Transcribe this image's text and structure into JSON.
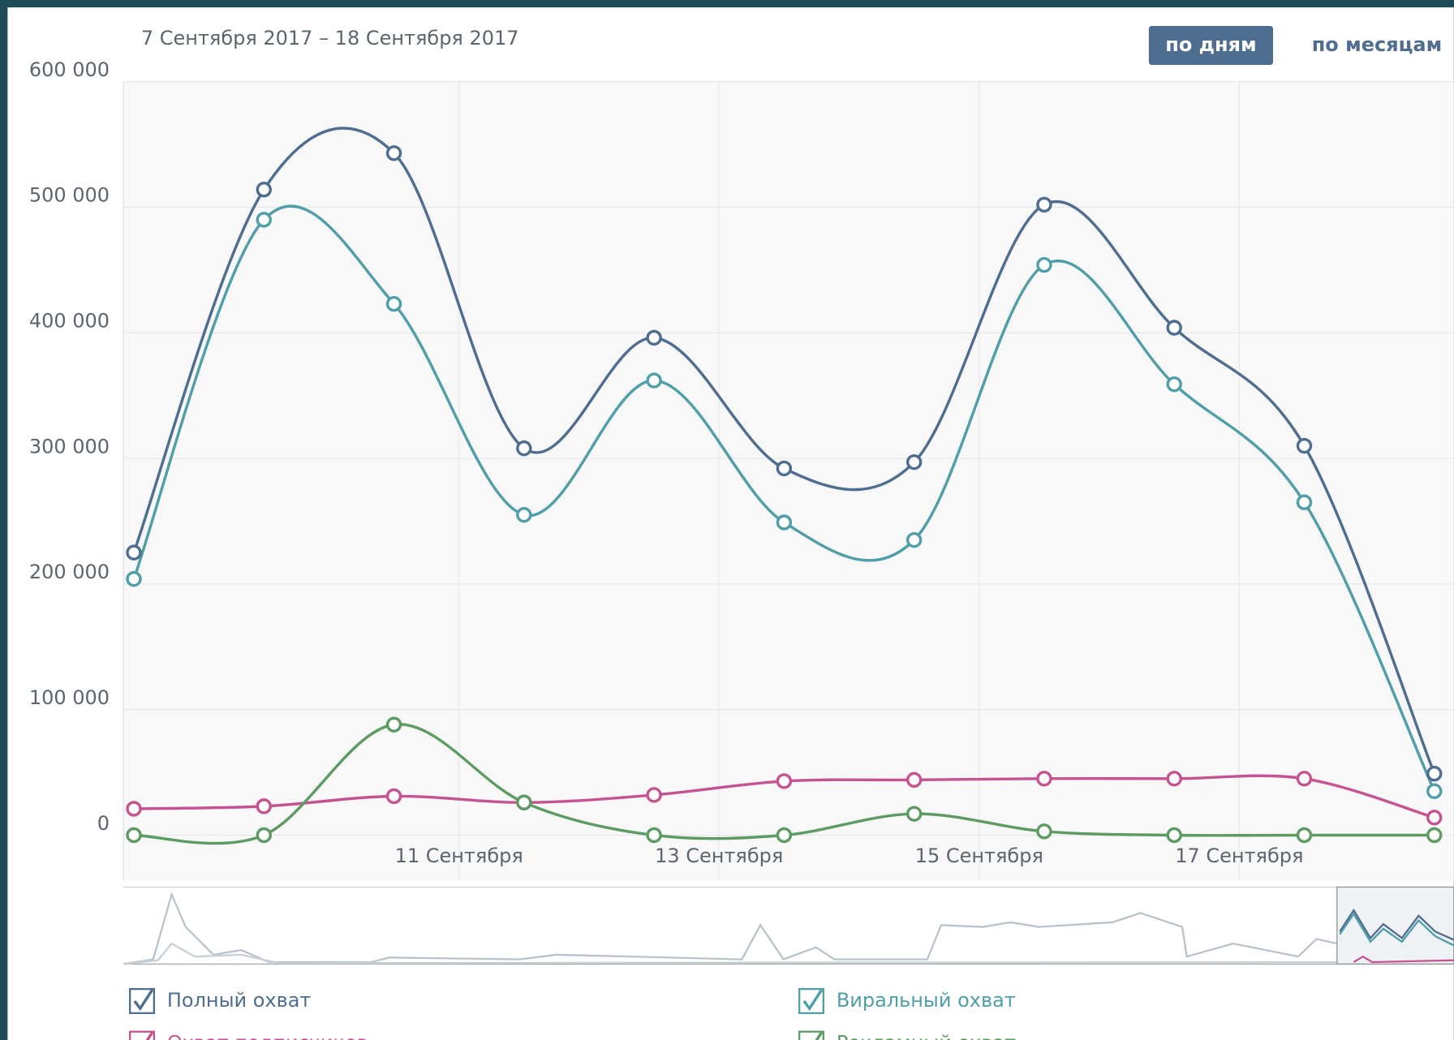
{
  "header": {
    "date_range": "7 Сентября 2017 – 18 Сентября 2017",
    "buttons": [
      "по дням",
      "по месяцам"
    ]
  },
  "chart_data": {
    "type": "line",
    "x": [
      8.5,
      9.5,
      10.5,
      11.5,
      12.5,
      13.5,
      14.5,
      15.5,
      16.5,
      17.5,
      18.5
    ],
    "xlim": [
      8.42,
      18.65
    ],
    "xticks": [
      {
        "value": 11,
        "label": "11 Сентября"
      },
      {
        "value": 13,
        "label": "13 Сентября"
      },
      {
        "value": 15,
        "label": "15 Сентября"
      },
      {
        "value": 17,
        "label": "17 Сентября"
      }
    ],
    "ylim": [
      0,
      600000
    ],
    "yticks": [
      {
        "value": 0,
        "label": "0"
      },
      {
        "value": 100000,
        "label": "100 000"
      },
      {
        "value": 200000,
        "label": "200 000"
      },
      {
        "value": 300000,
        "label": "300 000"
      },
      {
        "value": 400000,
        "label": "400 000"
      },
      {
        "value": 500000,
        "label": "500 000"
      },
      {
        "value": 600000,
        "label": "600 000"
      }
    ],
    "grid": true,
    "series": [
      {
        "name": "Полный охват",
        "color": "#4f6d8f",
        "values": [
          225000,
          514000,
          543000,
          308000,
          396000,
          292000,
          297000,
          502000,
          404000,
          310000,
          49000
        ]
      },
      {
        "name": "Виральный охват",
        "color": "#4f9ea8",
        "values": [
          204000,
          490000,
          423000,
          255000,
          362000,
          249000,
          235000,
          454000,
          359000,
          265000,
          35000
        ]
      },
      {
        "name": "Охват подписчиков",
        "color": "#c4538f",
        "values": [
          21000,
          23000,
          31000,
          26000,
          32000,
          43000,
          44000,
          45000,
          45000,
          45000,
          14000
        ]
      },
      {
        "name": "Рекламный охват",
        "color": "#5c9b62",
        "values": [
          0,
          0,
          88000,
          26000,
          0,
          0,
          17000,
          3000,
          0,
          0,
          0
        ]
      }
    ]
  }
}
